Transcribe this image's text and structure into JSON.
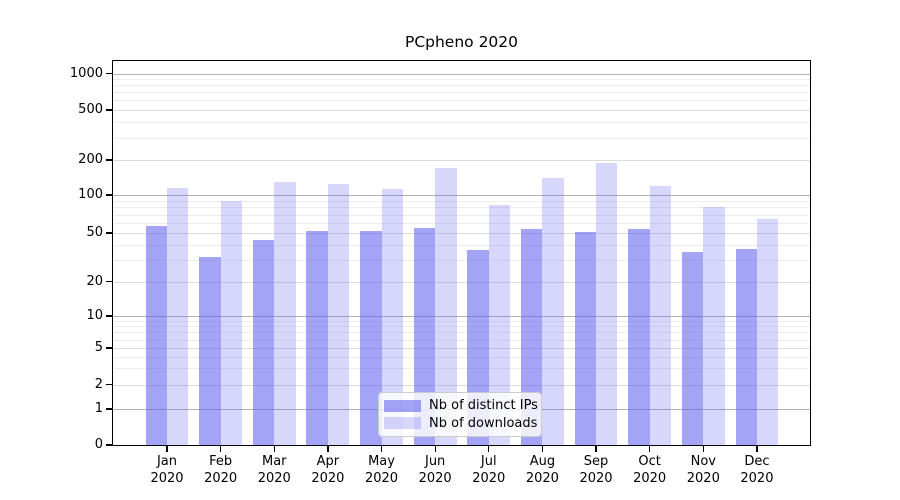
{
  "title": "PCpheno 2020",
  "chart_data": {
    "type": "bar",
    "title": "PCpheno 2020",
    "categories": [
      "Jan 2020",
      "Feb 2020",
      "Mar 2020",
      "Apr 2020",
      "May 2020",
      "Jun 2020",
      "Jul 2020",
      "Aug 2020",
      "Sep 2020",
      "Oct 2020",
      "Nov 2020",
      "Dec 2020"
    ],
    "series": [
      {
        "name": "Nb of distinct IPs",
        "color": "rgba(100,100,240,0.59)",
        "values": [
          57,
          32,
          44,
          52,
          52,
          55,
          36,
          54,
          51,
          54,
          35,
          37
        ]
      },
      {
        "name": "Nb of downloads",
        "color": "rgba(100,100,240,0.26)",
        "values": [
          116,
          90,
          130,
          125,
          113,
          170,
          83,
          140,
          190,
          120,
          80,
          65
        ]
      }
    ],
    "xlabel": "",
    "ylabel": "",
    "yscale": "symlog",
    "y_ticks": [
      0,
      1,
      2,
      5,
      10,
      20,
      50,
      100,
      200,
      500,
      1000
    ],
    "y_minor_ticks": [
      3,
      4,
      6,
      7,
      8,
      9,
      30,
      40,
      60,
      70,
      80,
      90,
      300,
      400,
      600,
      700,
      800,
      900
    ],
    "ylim": [
      0,
      1300
    ],
    "grid": true,
    "legend_position": "lower center inside plot"
  },
  "colors": {
    "bar_base": "#6464f0",
    "grid_decade": "#b2b2b2",
    "grid_major": "#dcdcdc",
    "grid_minor": "#eeeeee",
    "spine": "#000000",
    "text": "#000000",
    "legend_border": "#cccccc"
  }
}
